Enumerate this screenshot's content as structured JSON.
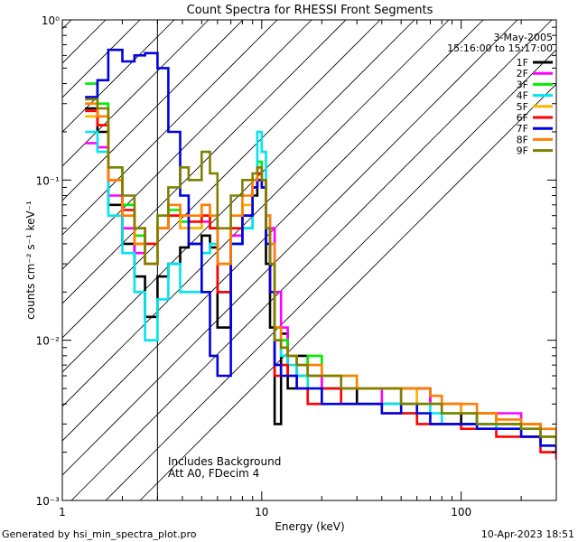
{
  "chart_data": {
    "type": "line",
    "title": "Count Spectra for RHESSI Front Segments",
    "xlabel": "Energy (keV)",
    "ylabel": "counts cm⁻² s⁻¹ keV⁻¹",
    "xscale": "log",
    "yscale": "log",
    "xlim": [
      1,
      300
    ],
    "ylim": [
      0.001,
      1
    ],
    "xticks": [
      {
        "v": 1,
        "label": "1"
      },
      {
        "v": 10,
        "label": "10"
      },
      {
        "v": 100,
        "label": "100"
      }
    ],
    "yticks": [
      {
        "v": 1,
        "label": "10⁰"
      },
      {
        "v": 0.1,
        "label": "10⁻¹"
      },
      {
        "v": 0.01,
        "label": "10⁻²"
      },
      {
        "v": 0.001,
        "label": "10⁻³"
      }
    ],
    "hatched_region_max_keV": 3,
    "date": "3-May-2005",
    "time_range": "15:16:00 to 15:17:00",
    "annotations": [
      "Includes Background",
      "Att A0, FDecim 4"
    ],
    "footer_left": "Generated by hsi_min_spectra_plot.pro",
    "footer_right": "10-Apr-2023 18:51",
    "series": [
      {
        "name": "1F",
        "color": "#000000",
        "x": [
          1.3,
          1.5,
          1.7,
          2.0,
          2.3,
          2.6,
          3.0,
          3.4,
          3.9,
          4.3,
          5.0,
          5.5,
          6.0,
          7.0,
          8.0,
          9.0,
          9.5,
          10.0,
          10.5,
          11.0,
          11.6,
          12.5,
          13.5,
          15,
          17,
          20,
          25,
          30,
          40,
          50,
          60,
          70,
          80,
          100,
          120,
          150,
          200,
          250,
          300
        ],
        "y": [
          0.28,
          0.2,
          0.07,
          0.04,
          0.025,
          0.014,
          0.025,
          0.03,
          0.038,
          0.04,
          0.045,
          0.038,
          0.012,
          0.04,
          0.05,
          0.08,
          0.11,
          0.09,
          0.03,
          0.012,
          0.003,
          0.011,
          0.005,
          0.008,
          0.006,
          0.005,
          0.005,
          0.004,
          0.004,
          0.005,
          0.005,
          0.004,
          0.004,
          0.003,
          0.0035,
          0.003,
          0.003,
          0.0025,
          0.002
        ]
      },
      {
        "name": "2F",
        "color": "#ff00ff",
        "x": [
          1.3,
          1.5,
          1.7,
          2.0,
          2.3,
          2.6,
          3.0,
          3.4,
          3.9,
          4.3,
          5.0,
          5.5,
          6.0,
          7.0,
          8.0,
          9.0,
          9.5,
          10.0,
          10.5,
          11.0,
          11.6,
          12.5,
          13.5,
          15,
          17,
          20,
          25,
          30,
          40,
          50,
          60,
          70,
          80,
          100,
          120,
          150,
          200,
          250,
          300
        ],
        "y": [
          0.17,
          0.16,
          0.08,
          0.05,
          0.035,
          0.03,
          0.05,
          0.06,
          0.05,
          0.05,
          0.055,
          0.05,
          0.02,
          0.045,
          0.06,
          0.09,
          0.12,
          0.1,
          0.06,
          0.05,
          0.02,
          0.012,
          0.008,
          0.006,
          0.006,
          0.005,
          0.005,
          0.005,
          0.004,
          0.004,
          0.005,
          0.004,
          0.004,
          0.0035,
          0.003,
          0.0035,
          0.003,
          0.0025,
          0.002
        ]
      },
      {
        "name": "3F",
        "color": "#00ee00",
        "x": [
          1.3,
          1.5,
          1.7,
          2.0,
          2.3,
          2.6,
          3.0,
          3.4,
          3.9,
          4.3,
          5.0,
          5.5,
          6.0,
          7.0,
          8.0,
          9.0,
          9.5,
          10.0,
          10.5,
          11.0,
          11.6,
          12.5,
          13.5,
          15,
          17,
          20,
          25,
          30,
          40,
          50,
          60,
          70,
          80,
          100,
          120,
          150,
          200,
          250,
          300
        ],
        "y": [
          0.4,
          0.3,
          0.12,
          0.07,
          0.045,
          0.03,
          0.06,
          0.065,
          0.055,
          0.05,
          0.06,
          0.05,
          0.02,
          0.05,
          0.07,
          0.1,
          0.13,
          0.1,
          0.05,
          0.03,
          0.012,
          0.01,
          0.008,
          0.006,
          0.008,
          0.006,
          0.006,
          0.005,
          0.005,
          0.004,
          0.004,
          0.004,
          0.0035,
          0.0035,
          0.003,
          0.003,
          0.0028,
          0.0025,
          0.002
        ]
      },
      {
        "name": "4F",
        "color": "#00e5ee",
        "x": [
          1.3,
          1.5,
          1.7,
          2.0,
          2.3,
          2.6,
          3.0,
          3.4,
          3.9,
          4.3,
          5.0,
          5.5,
          6.0,
          7.0,
          8.0,
          9.0,
          9.5,
          10.0,
          10.5,
          11.0,
          11.6,
          12.5,
          13.5,
          15,
          17,
          20,
          25,
          30,
          40,
          50,
          60,
          70,
          80,
          100,
          120,
          150,
          200,
          250,
          300
        ],
        "y": [
          0.2,
          0.15,
          0.06,
          0.035,
          0.02,
          0.01,
          0.018,
          0.03,
          0.02,
          0.02,
          0.035,
          0.04,
          0.02,
          0.04,
          0.05,
          0.1,
          0.2,
          0.15,
          0.06,
          0.03,
          0.01,
          0.008,
          0.007,
          0.006,
          0.005,
          0.005,
          0.004,
          0.004,
          0.004,
          0.0035,
          0.004,
          0.0035,
          0.003,
          0.003,
          0.003,
          0.0028,
          0.0025,
          0.0022,
          0.002
        ]
      },
      {
        "name": "5F",
        "color": "#ffb400",
        "x": [
          1.3,
          1.5,
          1.7,
          2.0,
          2.3,
          2.6,
          3.0,
          3.4,
          3.9,
          4.3,
          5.0,
          5.5,
          6.0,
          7.0,
          8.0,
          9.0,
          9.5,
          10.0,
          10.5,
          11.0,
          11.6,
          12.5,
          13.5,
          15,
          17,
          20,
          25,
          30,
          40,
          50,
          60,
          70,
          80,
          100,
          120,
          150,
          200,
          250,
          300
        ],
        "y": [
          0.25,
          0.22,
          0.1,
          0.06,
          0.04,
          0.03,
          0.05,
          0.06,
          0.05,
          0.05,
          0.06,
          0.05,
          0.03,
          0.05,
          0.07,
          0.09,
          0.11,
          0.1,
          0.05,
          0.03,
          0.01,
          0.009,
          0.008,
          0.007,
          0.006,
          0.006,
          0.005,
          0.005,
          0.005,
          0.005,
          0.004,
          0.004,
          0.004,
          0.0035,
          0.0035,
          0.003,
          0.003,
          0.0025,
          0.002
        ]
      },
      {
        "name": "6F",
        "color": "#ff0000",
        "x": [
          1.3,
          1.5,
          1.7,
          2.0,
          2.3,
          2.6,
          3.0,
          3.4,
          3.9,
          4.3,
          5.0,
          5.5,
          6.0,
          7.0,
          8.0,
          9.0,
          9.5,
          10.0,
          10.5,
          11.0,
          11.6,
          12.5,
          13.5,
          15,
          17,
          20,
          25,
          30,
          40,
          50,
          60,
          70,
          80,
          100,
          120,
          150,
          200,
          250,
          300
        ],
        "y": [
          0.27,
          0.22,
          0.1,
          0.065,
          0.05,
          0.04,
          0.05,
          0.06,
          0.06,
          0.055,
          0.06,
          0.05,
          0.02,
          0.05,
          0.06,
          0.09,
          0.11,
          0.1,
          0.05,
          0.02,
          0.006,
          0.007,
          0.006,
          0.005,
          0.004,
          0.005,
          0.004,
          0.004,
          0.0035,
          0.0035,
          0.003,
          0.003,
          0.003,
          0.0028,
          0.0028,
          0.0025,
          0.0025,
          0.002,
          0.0018
        ]
      },
      {
        "name": "7F",
        "color": "#0000e0",
        "x": [
          1.3,
          1.5,
          1.7,
          2.0,
          2.3,
          2.6,
          3.0,
          3.4,
          3.9,
          4.3,
          5.0,
          5.5,
          6.0,
          7.0,
          8.0,
          9.0,
          9.5,
          10.0,
          10.5,
          11.0,
          11.6,
          12.5,
          13.5,
          15,
          17,
          20,
          25,
          30,
          40,
          50,
          60,
          70,
          80,
          100,
          120,
          150,
          200,
          250,
          300
        ],
        "y": [
          0.33,
          0.42,
          0.65,
          0.55,
          0.6,
          0.62,
          0.5,
          0.2,
          0.08,
          0.04,
          0.02,
          0.008,
          0.006,
          0.04,
          0.06,
          0.09,
          0.1,
          0.09,
          0.04,
          0.02,
          0.007,
          0.006,
          0.006,
          0.005,
          0.005,
          0.004,
          0.004,
          0.004,
          0.0035,
          0.004,
          0.0035,
          0.003,
          0.003,
          0.003,
          0.0028,
          0.0028,
          0.0025,
          0.0022,
          0.002
        ]
      },
      {
        "name": "8F",
        "color": "#ff7f00",
        "x": [
          1.3,
          1.5,
          1.7,
          2.0,
          2.3,
          2.6,
          3.0,
          3.4,
          3.9,
          4.3,
          5.0,
          5.5,
          6.0,
          7.0,
          8.0,
          9.0,
          9.5,
          10.0,
          10.5,
          11.0,
          11.6,
          12.5,
          13.5,
          15,
          17,
          20,
          25,
          30,
          40,
          50,
          60,
          70,
          80,
          100,
          120,
          150,
          200,
          250,
          300
        ],
        "y": [
          0.3,
          0.25,
          0.1,
          0.06,
          0.04,
          0.03,
          0.05,
          0.07,
          0.06,
          0.06,
          0.07,
          0.06,
          0.03,
          0.06,
          0.08,
          0.1,
          0.12,
          0.1,
          0.06,
          0.04,
          0.012,
          0.009,
          0.008,
          0.007,
          0.007,
          0.006,
          0.006,
          0.005,
          0.005,
          0.005,
          0.005,
          0.0045,
          0.004,
          0.004,
          0.0035,
          0.0032,
          0.003,
          0.0028,
          0.0025
        ]
      },
      {
        "name": "9F",
        "color": "#808000",
        "x": [
          1.3,
          1.5,
          1.7,
          2.0,
          2.3,
          2.6,
          3.0,
          3.4,
          3.9,
          4.3,
          5.0,
          5.5,
          6.0,
          7.0,
          8.0,
          9.0,
          9.5,
          10.0,
          10.5,
          11.0,
          11.6,
          12.5,
          13.5,
          15,
          17,
          20,
          25,
          30,
          40,
          50,
          60,
          70,
          80,
          100,
          120,
          150,
          200,
          250,
          300
        ],
        "y": [
          0.32,
          0.28,
          0.12,
          0.08,
          0.05,
          0.03,
          0.06,
          0.09,
          0.12,
          0.1,
          0.15,
          0.11,
          0.05,
          0.08,
          0.1,
          0.11,
          0.12,
          0.1,
          0.05,
          0.03,
          0.01,
          0.009,
          0.008,
          0.007,
          0.006,
          0.006,
          0.005,
          0.005,
          0.005,
          0.004,
          0.004,
          0.004,
          0.0035,
          0.0035,
          0.003,
          0.003,
          0.0028,
          0.0025,
          0.0022
        ]
      }
    ]
  }
}
